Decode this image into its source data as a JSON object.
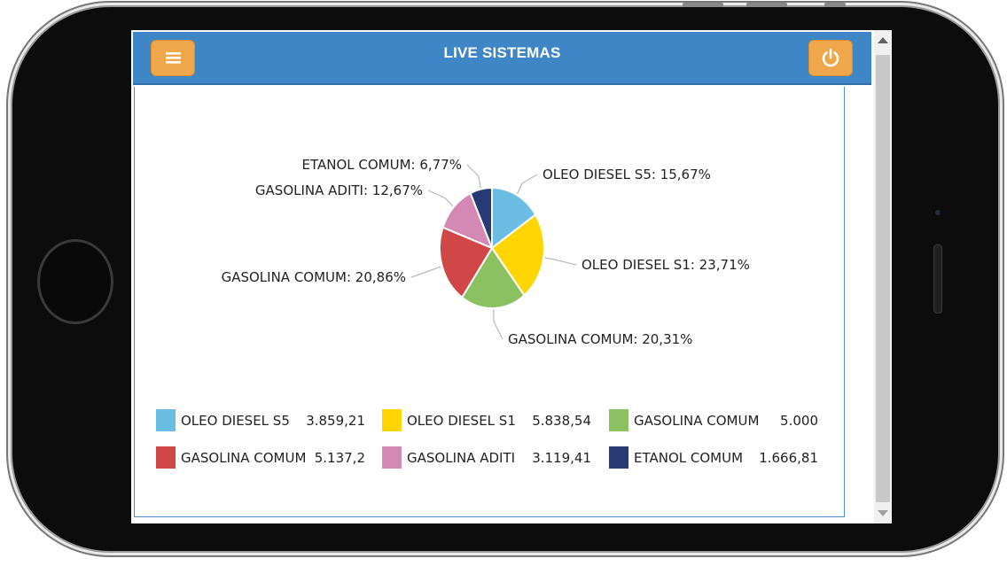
{
  "app": {
    "title": "LIVE SISTEMAS"
  },
  "header": {
    "menu_icon": "menu-icon",
    "power_icon": "power-icon"
  },
  "colors": {
    "header": "#3f86c6",
    "header_button": "#f0a64a",
    "slices": [
      "#6cbde3",
      "#ffd500",
      "#8cc162",
      "#d14646",
      "#d389b3",
      "#273a73"
    ]
  },
  "chart_data": {
    "type": "pie",
    "slices": [
      {
        "label": "OLEO DIESEL S5",
        "value": 3859.21,
        "value_text": "3.859,21",
        "percent_text": "15,67%"
      },
      {
        "label": "OLEO DIESEL S1",
        "value": 5838.54,
        "value_text": "5.838,54",
        "percent_text": "23,71%"
      },
      {
        "label": "GASOLINA COMUM",
        "value": 5000,
        "value_text": "5.000",
        "percent_text": "20,31%"
      },
      {
        "label": "GASOLINA COMUM",
        "value": 5137.2,
        "value_text": "5.137,2",
        "percent_text": "20,86%"
      },
      {
        "label": "GASOLINA ADITI",
        "value": 3119.41,
        "value_text": "3.119,41",
        "percent_text": "12,67%"
      },
      {
        "label": "ETANOL COMUM",
        "value": 1666.81,
        "value_text": "1.666,81",
        "percent_text": "6,77%"
      }
    ],
    "legend_position": "bottom",
    "legend_columns": 3
  }
}
